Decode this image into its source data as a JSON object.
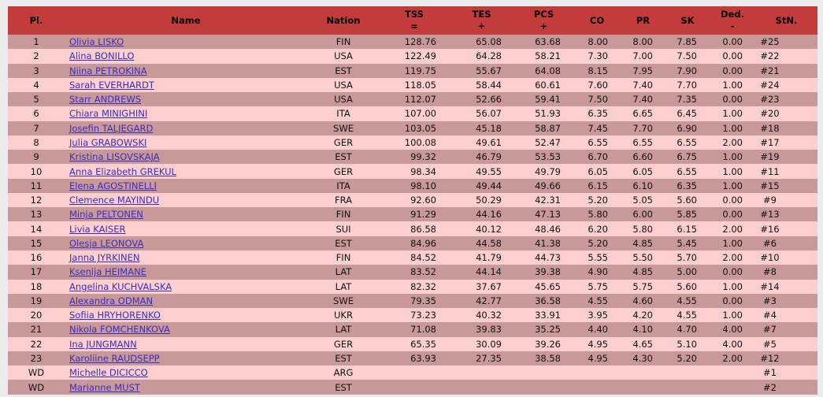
{
  "page": {
    "background_color": "#ececec"
  },
  "table": {
    "header_bg_color": "#c43b3c",
    "row_dark_color": "#c99898",
    "row_light_color": "#fdcfcf",
    "link_color": "#3a2ec0",
    "columns": [
      {
        "key": "pl",
        "label": "Pl.",
        "sub": ""
      },
      {
        "key": "name",
        "label": "Name",
        "sub": ""
      },
      {
        "key": "nation",
        "label": "Nation",
        "sub": ""
      },
      {
        "key": "tss",
        "label": "TSS",
        "sub": "="
      },
      {
        "key": "tes",
        "label": "TES",
        "sub": "+"
      },
      {
        "key": "pcs",
        "label": "PCS",
        "sub": "+"
      },
      {
        "key": "co",
        "label": "CO",
        "sub": ""
      },
      {
        "key": "pr",
        "label": "PR",
        "sub": ""
      },
      {
        "key": "sk",
        "label": "SK",
        "sub": ""
      },
      {
        "key": "ded",
        "label": "Ded.",
        "sub": "-"
      },
      {
        "key": "stn",
        "label": "StN.",
        "sub": ""
      }
    ],
    "rows": [
      {
        "pl": "1",
        "name": "Olivia LISKO",
        "nation": "FIN",
        "tss": "128.76",
        "tes": "65.08",
        "pcs": "63.68",
        "co": "8.00",
        "pr": "8.00",
        "sk": "7.85",
        "ded": "0.00",
        "stn": "#25"
      },
      {
        "pl": "2",
        "name": "Alina BONILLO",
        "nation": "USA",
        "tss": "122.49",
        "tes": "64.28",
        "pcs": "58.21",
        "co": "7.30",
        "pr": "7.00",
        "sk": "7.50",
        "ded": "0.00",
        "stn": "#22"
      },
      {
        "pl": "3",
        "name": "Niina PETROKINA",
        "nation": "EST",
        "tss": "119.75",
        "tes": "55.67",
        "pcs": "64.08",
        "co": "8.15",
        "pr": "7.95",
        "sk": "7.90",
        "ded": "0.00",
        "stn": "#21"
      },
      {
        "pl": "4",
        "name": "Sarah EVERHARDT",
        "nation": "USA",
        "tss": "118.05",
        "tes": "58.44",
        "pcs": "60.61",
        "co": "7.60",
        "pr": "7.40",
        "sk": "7.70",
        "ded": "1.00",
        "stn": "#24"
      },
      {
        "pl": "5",
        "name": "Starr ANDREWS",
        "nation": "USA",
        "tss": "112.07",
        "tes": "52.66",
        "pcs": "59.41",
        "co": "7.50",
        "pr": "7.40",
        "sk": "7.35",
        "ded": "0.00",
        "stn": "#23"
      },
      {
        "pl": "6",
        "name": "Chiara MINIGHINI",
        "nation": "ITA",
        "tss": "107.00",
        "tes": "56.07",
        "pcs": "51.93",
        "co": "6.35",
        "pr": "6.65",
        "sk": "6.45",
        "ded": "1.00",
        "stn": "#20"
      },
      {
        "pl": "7",
        "name": "Josefin TALJEGARD",
        "nation": "SWE",
        "tss": "103.05",
        "tes": "45.18",
        "pcs": "58.87",
        "co": "7.45",
        "pr": "7.70",
        "sk": "6.90",
        "ded": "1.00",
        "stn": "#18"
      },
      {
        "pl": "8",
        "name": "Julia GRABOWSKI",
        "nation": "GER",
        "tss": "100.08",
        "tes": "49.61",
        "pcs": "52.47",
        "co": "6.55",
        "pr": "6.55",
        "sk": "6.55",
        "ded": "2.00",
        "stn": "#17"
      },
      {
        "pl": "9",
        "name": "Kristina LISOVSKAJA",
        "nation": "EST",
        "tss": "99.32",
        "tes": "46.79",
        "pcs": "53.53",
        "co": "6.70",
        "pr": "6.60",
        "sk": "6.75",
        "ded": "1.00",
        "stn": "#19"
      },
      {
        "pl": "10",
        "name": "Anna Elizabeth GREKUL",
        "nation": "GER",
        "tss": "98.34",
        "tes": "49.55",
        "pcs": "49.79",
        "co": "6.05",
        "pr": "6.05",
        "sk": "6.55",
        "ded": "1.00",
        "stn": "#11"
      },
      {
        "pl": "11",
        "name": "Elena AGOSTINELLI",
        "nation": "ITA",
        "tss": "98.10",
        "tes": "49.44",
        "pcs": "49.66",
        "co": "6.15",
        "pr": "6.10",
        "sk": "6.35",
        "ded": "1.00",
        "stn": "#15"
      },
      {
        "pl": "12",
        "name": "Clemence MAYINDU",
        "nation": "FRA",
        "tss": "92.60",
        "tes": "50.29",
        "pcs": "42.31",
        "co": "5.20",
        "pr": "5.05",
        "sk": "5.60",
        "ded": "0.00",
        "stn": "#9"
      },
      {
        "pl": "13",
        "name": "Minja PELTONEN",
        "nation": "FIN",
        "tss": "91.29",
        "tes": "44.16",
        "pcs": "47.13",
        "co": "5.80",
        "pr": "6.00",
        "sk": "5.85",
        "ded": "0.00",
        "stn": "#13"
      },
      {
        "pl": "14",
        "name": "Livia KAISER",
        "nation": "SUI",
        "tss": "86.58",
        "tes": "40.12",
        "pcs": "48.46",
        "co": "6.20",
        "pr": "5.80",
        "sk": "6.15",
        "ded": "2.00",
        "stn": "#16"
      },
      {
        "pl": "15",
        "name": "Olesja LEONOVA",
        "nation": "EST",
        "tss": "84.96",
        "tes": "44.58",
        "pcs": "41.38",
        "co": "5.20",
        "pr": "4.85",
        "sk": "5.45",
        "ded": "1.00",
        "stn": "#6"
      },
      {
        "pl": "16",
        "name": "Janna JYRKINEN",
        "nation": "FIN",
        "tss": "84.52",
        "tes": "41.79",
        "pcs": "44.73",
        "co": "5.55",
        "pr": "5.50",
        "sk": "5.70",
        "ded": "2.00",
        "stn": "#10"
      },
      {
        "pl": "17",
        "name": "Ksenija HEIMANE",
        "nation": "LAT",
        "tss": "83.52",
        "tes": "44.14",
        "pcs": "39.38",
        "co": "4.90",
        "pr": "4.85",
        "sk": "5.00",
        "ded": "0.00",
        "stn": "#8"
      },
      {
        "pl": "18",
        "name": "Angelina KUCHVALSKA",
        "nation": "LAT",
        "tss": "82.32",
        "tes": "37.67",
        "pcs": "45.65",
        "co": "5.75",
        "pr": "5.75",
        "sk": "5.60",
        "ded": "1.00",
        "stn": "#14"
      },
      {
        "pl": "19",
        "name": "Alexandra ODMAN",
        "nation": "SWE",
        "tss": "79.35",
        "tes": "42.77",
        "pcs": "36.58",
        "co": "4.55",
        "pr": "4.60",
        "sk": "4.55",
        "ded": "0.00",
        "stn": "#3"
      },
      {
        "pl": "20",
        "name": "Sofiia HRYHORENKO",
        "nation": "UKR",
        "tss": "73.23",
        "tes": "40.32",
        "pcs": "33.91",
        "co": "3.95",
        "pr": "4.20",
        "sk": "4.55",
        "ded": "1.00",
        "stn": "#4"
      },
      {
        "pl": "21",
        "name": "Nikola FOMCHENKOVA",
        "nation": "LAT",
        "tss": "71.08",
        "tes": "39.83",
        "pcs": "35.25",
        "co": "4.40",
        "pr": "4.10",
        "sk": "4.70",
        "ded": "4.00",
        "stn": "#7"
      },
      {
        "pl": "22",
        "name": "Ina JUNGMANN",
        "nation": "GER",
        "tss": "65.35",
        "tes": "30.09",
        "pcs": "39.26",
        "co": "4.95",
        "pr": "4.65",
        "sk": "5.10",
        "ded": "4.00",
        "stn": "#5"
      },
      {
        "pl": "23",
        "name": "Karoliine RAUDSEPP",
        "nation": "EST",
        "tss": "63.93",
        "tes": "27.35",
        "pcs": "38.58",
        "co": "4.95",
        "pr": "4.30",
        "sk": "5.20",
        "ded": "2.00",
        "stn": "#12"
      },
      {
        "pl": "WD",
        "name": "Michelle DICICCO",
        "nation": "ARG",
        "tss": "",
        "tes": "",
        "pcs": "",
        "co": "",
        "pr": "",
        "sk": "",
        "ded": "",
        "stn": "#1"
      },
      {
        "pl": "WD",
        "name": "Marianne MUST",
        "nation": "EST",
        "tss": "",
        "tes": "",
        "pcs": "",
        "co": "",
        "pr": "",
        "sk": "",
        "ded": "",
        "stn": "#2"
      }
    ]
  }
}
